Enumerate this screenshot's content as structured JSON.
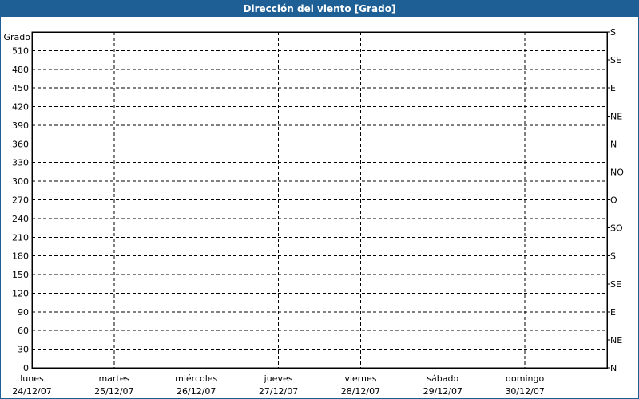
{
  "window": {
    "title": "Dirección del viento [Grado]"
  },
  "chart_data": {
    "type": "line",
    "title": "Dirección del viento [Grado]",
    "ylabel": "Grado",
    "ylim": [
      0,
      540
    ],
    "yticks": [
      0,
      30,
      60,
      90,
      120,
      150,
      180,
      210,
      240,
      270,
      300,
      330,
      360,
      390,
      420,
      450,
      480,
      510
    ],
    "y2ticks": [
      {
        "value": 0,
        "label": "N"
      },
      {
        "value": 45,
        "label": "NE"
      },
      {
        "value": 90,
        "label": "E"
      },
      {
        "value": 135,
        "label": "SE"
      },
      {
        "value": 180,
        "label": "S"
      },
      {
        "value": 225,
        "label": "SO"
      },
      {
        "value": 270,
        "label": "O"
      },
      {
        "value": 315,
        "label": "NO"
      },
      {
        "value": 360,
        "label": "N"
      },
      {
        "value": 405,
        "label": "NE"
      },
      {
        "value": 450,
        "label": "E"
      },
      {
        "value": 495,
        "label": "SE"
      },
      {
        "value": 540,
        "label": "S"
      }
    ],
    "xticks": [
      {
        "day": "lunes",
        "date": "24/12/07"
      },
      {
        "day": "martes",
        "date": "25/12/07"
      },
      {
        "day": "miércoles",
        "date": "26/12/07"
      },
      {
        "day": "jueves",
        "date": "27/12/07"
      },
      {
        "day": "viernes",
        "date": "28/12/07"
      },
      {
        "day": "sábado",
        "date": "29/12/07"
      },
      {
        "day": "domingo",
        "date": "30/12/07"
      }
    ],
    "grid": true,
    "series": []
  }
}
